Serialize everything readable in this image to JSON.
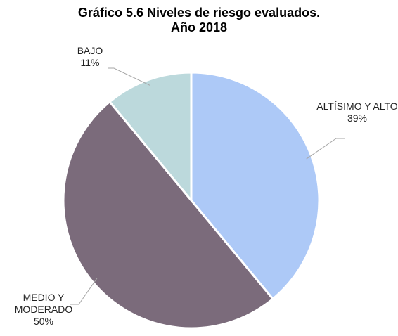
{
  "chart_data": {
    "type": "pie",
    "title": [
      "Gráfico 5.6 Niveles de riesgo evaluados.",
      "Año 2018"
    ],
    "categories": [
      "ALTÍSIMO Y ALTO",
      "MEDIO Y MODERADO",
      "BAJO"
    ],
    "values": [
      39,
      50,
      11
    ],
    "value_labels": [
      "39%",
      "50%",
      "11%"
    ],
    "colors": [
      "#adc9f7",
      "#7b6b7b",
      "#bcd9dc"
    ]
  }
}
